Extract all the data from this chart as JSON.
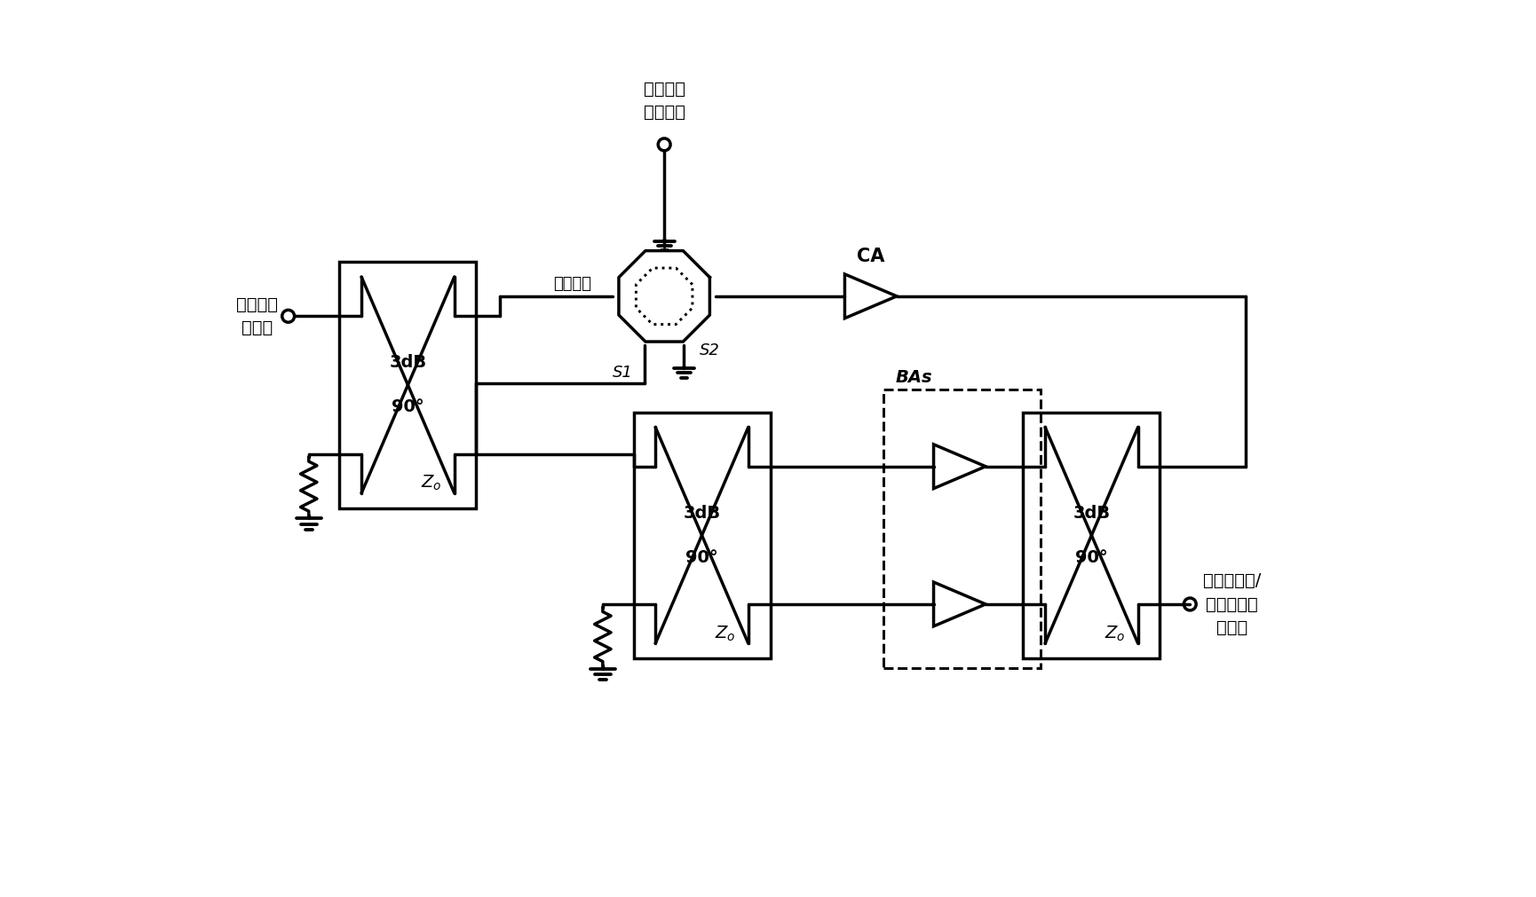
{
  "bg_color": "#ffffff",
  "lc": "#000000",
  "lw": 2.5,
  "figsize": [
    17.31,
    10.11
  ],
  "dpi": 100,
  "text_pa_in": "功率放大\n器输入",
  "text_lna_in": "低噪声放\n大器输入",
  "text_balun": "耦合巴伦",
  "text_CA": "CA",
  "text_BAs": "BAs",
  "text_S1": "S1",
  "text_S2": "S2",
  "text_out": "功率放大器/\n低噪声放大\n器输出"
}
